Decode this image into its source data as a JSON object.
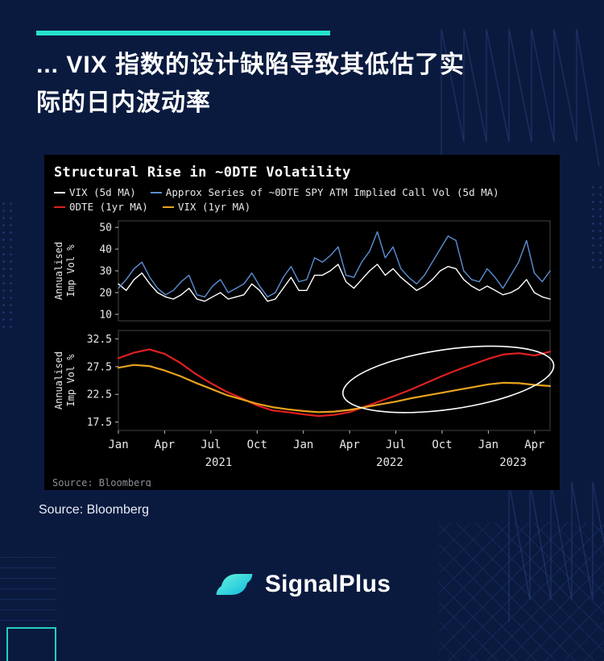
{
  "page": {
    "bg_color": "#0a1a3f",
    "accent_color": "#25e2cf"
  },
  "header": {
    "title_lines": [
      "... VIX 指数的设计缺陷导致其低估了实",
      "际的日内波动率"
    ]
  },
  "source_label": "Source: Bloomberg",
  "brand": {
    "name": "SignalPlus"
  },
  "chart_data": {
    "type": "line",
    "title": "Structural Rise in ~0DTE Volatility",
    "background": "#000000",
    "legend": [
      {
        "label": "VIX (5d MA)",
        "color": "#ffffff"
      },
      {
        "label": "Approx Series of ~0DTE SPY ATM Implied Call Vol (5d MA)",
        "color": "#5b8fd4"
      },
      {
        "label": "0DTE (1yr MA)",
        "color": "#e02020"
      },
      {
        "label": "VIX (1yr MA)",
        "color": "#e8a31e"
      }
    ],
    "x_range_months": [
      0,
      28
    ],
    "x_ticks": [
      {
        "label": "Jan",
        "month": 0
      },
      {
        "label": "Apr",
        "month": 3
      },
      {
        "label": "Jul",
        "month": 6
      },
      {
        "label": "Oct",
        "month": 9
      },
      {
        "label": "Jan",
        "month": 12
      },
      {
        "label": "Apr",
        "month": 15
      },
      {
        "label": "Jul",
        "month": 18
      },
      {
        "label": "Oct",
        "month": 21
      },
      {
        "label": "Jan",
        "month": 24
      },
      {
        "label": "Apr",
        "month": 27
      }
    ],
    "year_labels": [
      {
        "label": "2021",
        "month": 6.5
      },
      {
        "label": "2022",
        "month": 17.6
      },
      {
        "label": "2023",
        "month": 25.6
      }
    ],
    "panels": [
      {
        "ylabel_lines": [
          "Annualised",
          "Imp Vol %"
        ],
        "yticks": [
          10,
          20,
          30,
          40,
          50
        ],
        "ylim": [
          7,
          53
        ],
        "series": [
          {
            "name": "VIX (5d MA)",
            "color": "#ffffff",
            "values": [
              24,
              21,
              26,
              29,
              24,
              20,
              18,
              17,
              19,
              22,
              17,
              16,
              18,
              20,
              17,
              18,
              19,
              24,
              21,
              16,
              17,
              22,
              27,
              21,
              21,
              28,
              28,
              30,
              33,
              25,
              22,
              26,
              30,
              33,
              28,
              31,
              27,
              24,
              21,
              23,
              26,
              30,
              32,
              31,
              26,
              23,
              21,
              23,
              21,
              19,
              20,
              22,
              26,
              20,
              18,
              17
            ]
          },
          {
            "name": "Approx Series of ~0DTE SPY ATM Implied Call Vol (5d MA)",
            "color": "#5b8fd4",
            "values": [
              22,
              26,
              31,
              34,
              27,
              22,
              19,
              21,
              25,
              28,
              19,
              18,
              23,
              26,
              20,
              22,
              24,
              29,
              23,
              18,
              20,
              27,
              32,
              25,
              26,
              36,
              34,
              37,
              41,
              28,
              27,
              34,
              39,
              48,
              36,
              41,
              31,
              27,
              24,
              28,
              34,
              40,
              46,
              44,
              30,
              26,
              25,
              31,
              27,
              22,
              28,
              34,
              44,
              29,
              25,
              30
            ]
          }
        ]
      },
      {
        "ylabel_lines": [
          "Annualised",
          "Imp Vol %"
        ],
        "yticks": [
          17.5,
          22.5,
          27.5,
          32.5
        ],
        "ylim": [
          16,
          34
        ],
        "series": [
          {
            "name": "0DTE (1yr MA)",
            "color": "#e02020",
            "values": [
              29.0,
              30.0,
              30.6,
              29.8,
              28.2,
              26.2,
              24.5,
              23.0,
              21.8,
              20.5,
              19.6,
              19.3,
              18.9,
              18.6,
              18.8,
              19.3,
              20.3,
              21.3,
              22.3,
              23.4,
              24.6,
              25.8,
              26.9,
              27.9,
              28.9,
              29.7,
              29.9,
              29.5,
              30.2
            ]
          },
          {
            "name": "VIX (1yr MA)",
            "color": "#e8a31e",
            "values": [
              27.3,
              27.8,
              27.6,
              26.8,
              25.8,
              24.6,
              23.5,
              22.4,
              21.6,
              20.8,
              20.2,
              19.8,
              19.5,
              19.3,
              19.4,
              19.7,
              20.2,
              20.7,
              21.2,
              21.8,
              22.3,
              22.8,
              23.3,
              23.8,
              24.3,
              24.6,
              24.5,
              24.2,
              24.0
            ]
          }
        ],
        "annotation_ellipse": {
          "cx_month": 21.4,
          "cy_value": 25.2,
          "rx_months": 6.9,
          "ry_values": 5.4,
          "rotate_deg": -8,
          "color": "#ffffff"
        }
      }
    ],
    "inner_source_label": "Source: Bloomberg"
  }
}
